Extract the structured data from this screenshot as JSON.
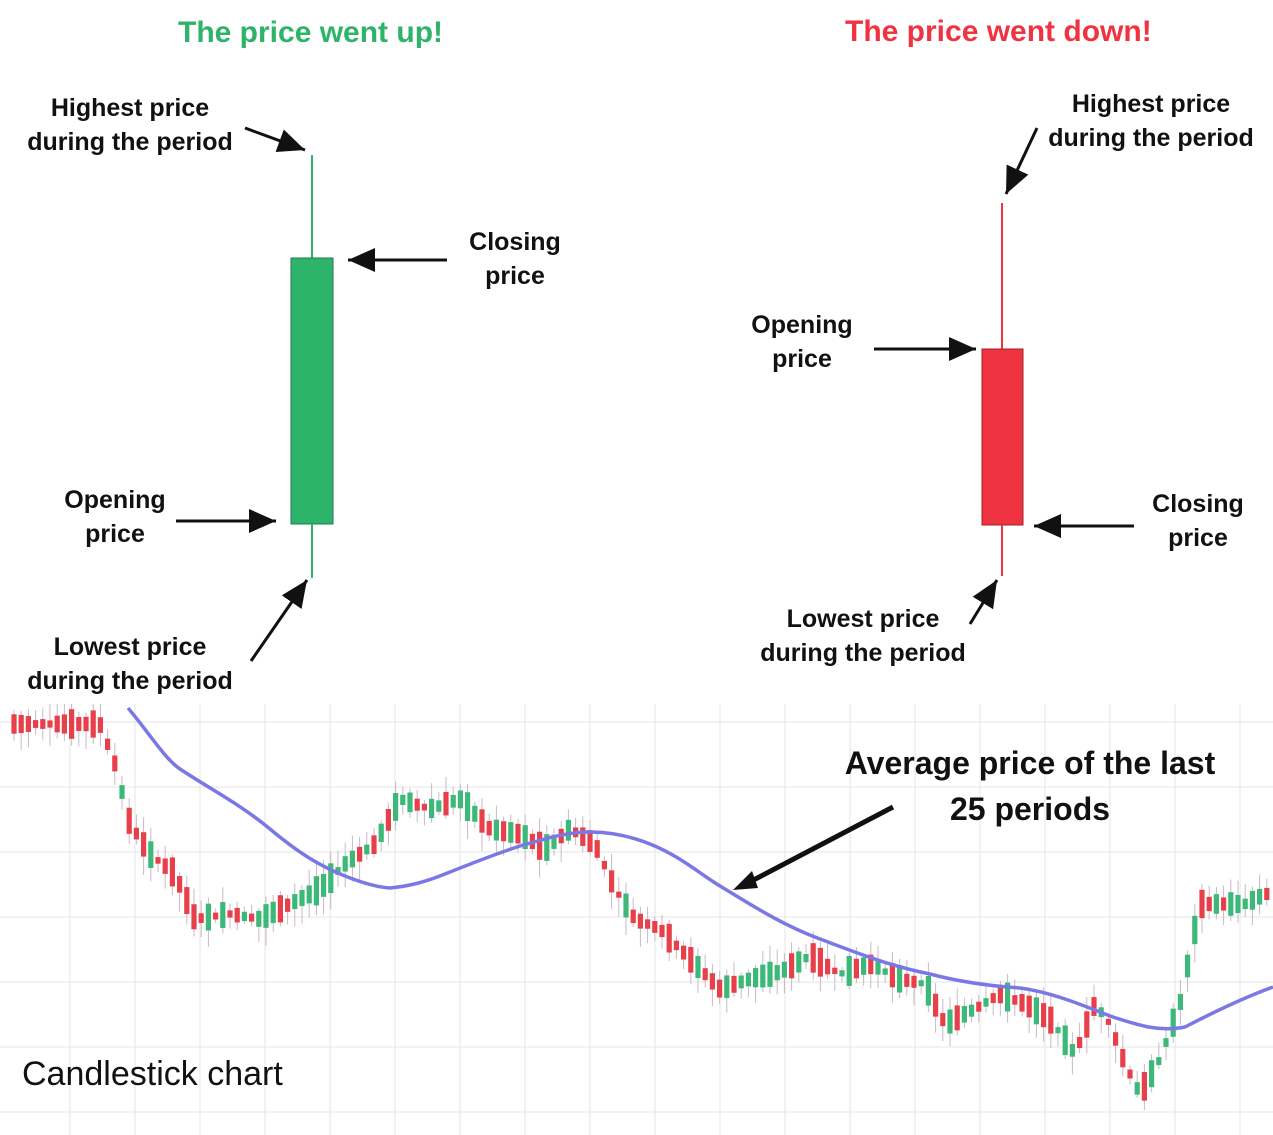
{
  "headings": {
    "up": "The price went up!",
    "down": "The price went down!",
    "up_color": "#2eb36a",
    "down_color": "#ef3340"
  },
  "up_candle": {
    "high_label": [
      "Highest price",
      "during the period"
    ],
    "close_label": [
      "Closing",
      "price"
    ],
    "open_label": [
      "Opening",
      "price"
    ],
    "low_label": [
      "Lowest price",
      "during the period"
    ],
    "color": "#2eb36a"
  },
  "down_candle": {
    "high_label": [
      "Highest price",
      "during the period"
    ],
    "open_label": [
      "Opening",
      "price"
    ],
    "close_label": [
      "Closing",
      "price"
    ],
    "low_label": [
      "Lowest price",
      "during the period"
    ],
    "color": "#ef3340"
  },
  "chart": {
    "title": "Candlestick chart",
    "ma_label": [
      "Average price of the last",
      "25 periods"
    ],
    "ma_color": "#7b78e6",
    "up_color": "#3cb878",
    "down_color": "#e8404a",
    "grid": true
  }
}
